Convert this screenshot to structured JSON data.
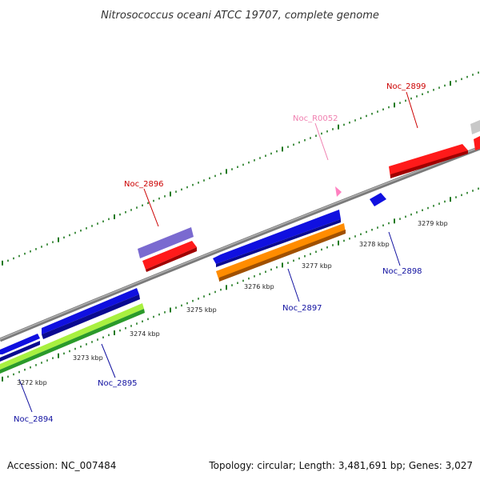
{
  "title": "Nitrosococcus oceani ATCC 19707, complete genome",
  "footer": {
    "accession": "Accession: NC_007484",
    "info": "Topology: circular; Length: 3,481,691 bp; Genes: 3,027"
  },
  "scale_labels": [
    "3272 kbp",
    "3273 kbp",
    "3274 kbp",
    "3275 kbp",
    "3276 kbp",
    "3277 kbp",
    "3278 kbp",
    "3279 kbp"
  ],
  "gene_labels": [
    "Noc_2899",
    "Noc_R0052",
    "Noc_2896",
    "Noc_2898",
    "Noc_2897",
    "Noc_2895",
    "Noc_2894"
  ],
  "colors": {
    "backbone": "#8a8a8a",
    "tick": "#1f7a1f",
    "label_red": "#cc0000",
    "label_blue": "#1010a0",
    "label_pink": "#f080b0",
    "gene_red": "#ff1a1a",
    "gene_blue": "#1010e0",
    "gene_purple": "#7a6ad0",
    "gene_orange": "#ff8c00",
    "gene_lime": "#a8f040",
    "gene_green": "#2a9a2a",
    "gene_gray": "#c8c8c8",
    "gene_pink": "#ff80c0"
  }
}
